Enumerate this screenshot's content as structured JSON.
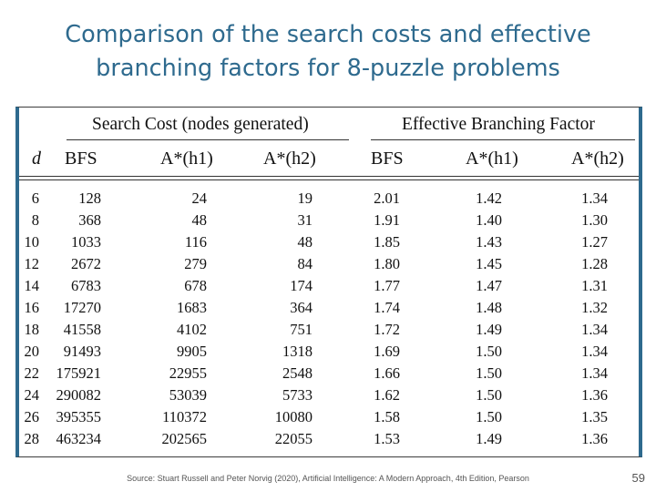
{
  "slide": {
    "title_line1": "Comparison of the search costs and effective",
    "title_line2": "branching factors for 8-puzzle problems",
    "source": "Source: Stuart Russell and Peter Norvig (2020), Artificial Intelligence: A Modern Approach, 4th Edition, Pearson",
    "page_number": "59"
  },
  "table": {
    "group_headers": [
      "Search Cost (nodes generated)",
      "Effective Branching Factor"
    ],
    "column_headers": [
      "d",
      "BFS",
      "A*(h1)",
      "A*(h2)",
      "BFS",
      "A*(h1)",
      "A*(h2)"
    ],
    "rows": [
      [
        "6",
        "128",
        "24",
        "19",
        "2.01",
        "1.42",
        "1.34"
      ],
      [
        "8",
        "368",
        "48",
        "31",
        "1.91",
        "1.40",
        "1.30"
      ],
      [
        "10",
        "1033",
        "116",
        "48",
        "1.85",
        "1.43",
        "1.27"
      ],
      [
        "12",
        "2672",
        "279",
        "84",
        "1.80",
        "1.45",
        "1.28"
      ],
      [
        "14",
        "6783",
        "678",
        "174",
        "1.77",
        "1.47",
        "1.31"
      ],
      [
        "16",
        "17270",
        "1683",
        "364",
        "1.74",
        "1.48",
        "1.32"
      ],
      [
        "18",
        "41558",
        "4102",
        "751",
        "1.72",
        "1.49",
        "1.34"
      ],
      [
        "20",
        "91493",
        "9905",
        "1318",
        "1.69",
        "1.50",
        "1.34"
      ],
      [
        "22",
        "175921",
        "22955",
        "2548",
        "1.66",
        "1.50",
        "1.34"
      ],
      [
        "24",
        "290082",
        "53039",
        "5733",
        "1.62",
        "1.50",
        "1.36"
      ],
      [
        "26",
        "395355",
        "110372",
        "10080",
        "1.58",
        "1.50",
        "1.35"
      ],
      [
        "28",
        "463234",
        "202565",
        "22055",
        "1.53",
        "1.49",
        "1.36"
      ]
    ]
  }
}
